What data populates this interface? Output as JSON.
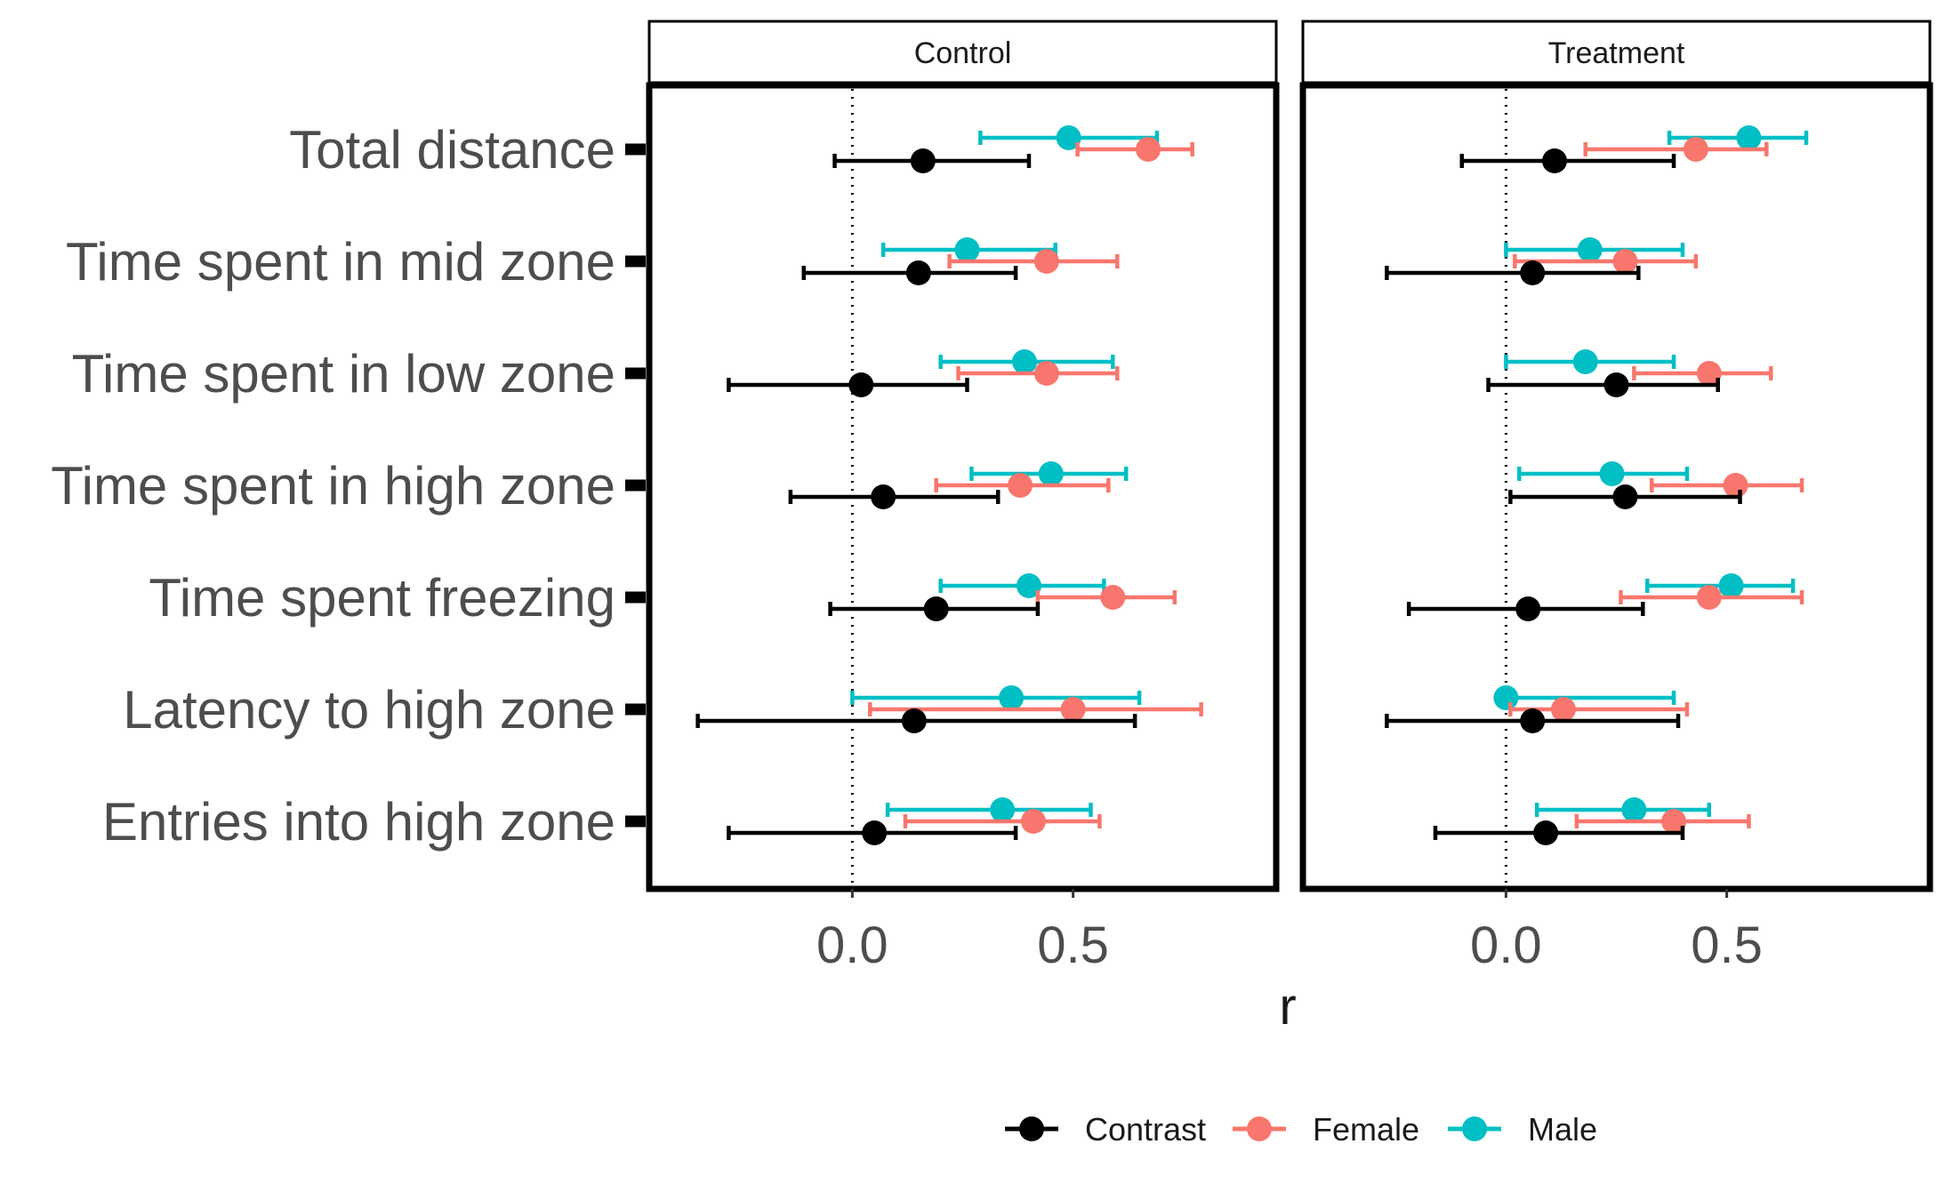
{
  "chart_data": {
    "type": "forest",
    "xlabel": "r",
    "xlim": [
      -0.46,
      0.96
    ],
    "xticks": [
      0.0,
      0.5
    ],
    "tick_labels": [
      "0.0",
      "0.5"
    ],
    "reference_line": 0,
    "legend_placement": "bottom",
    "categories": [
      "Total distance",
      "Time spent in mid zone",
      "Time spent in low zone",
      "Time spent in high zone",
      "Time spent freezing",
      "Latency to high zone",
      "Entries into high zone"
    ],
    "series": [
      {
        "name": "Contrast",
        "color": "#000000"
      },
      {
        "name": "Female",
        "color": "#F8766D"
      },
      {
        "name": "Male",
        "color": "#00BFC4"
      }
    ],
    "facets": [
      {
        "label": "Control",
        "data": {
          "Contrast": [
            {
              "est": 0.16,
              "lo": -0.04,
              "hi": 0.4
            },
            {
              "est": 0.15,
              "lo": -0.11,
              "hi": 0.37
            },
            {
              "est": 0.02,
              "lo": -0.28,
              "hi": 0.26
            },
            {
              "est": 0.07,
              "lo": -0.14,
              "hi": 0.33
            },
            {
              "est": 0.19,
              "lo": -0.05,
              "hi": 0.42
            },
            {
              "est": 0.14,
              "lo": -0.35,
              "hi": 0.64
            },
            {
              "est": 0.05,
              "lo": -0.28,
              "hi": 0.37
            }
          ],
          "Female": [
            {
              "est": 0.67,
              "lo": 0.51,
              "hi": 0.77
            },
            {
              "est": 0.44,
              "lo": 0.22,
              "hi": 0.6
            },
            {
              "est": 0.44,
              "lo": 0.24,
              "hi": 0.6
            },
            {
              "est": 0.38,
              "lo": 0.19,
              "hi": 0.58
            },
            {
              "est": 0.59,
              "lo": 0.42,
              "hi": 0.73
            },
            {
              "est": 0.5,
              "lo": 0.04,
              "hi": 0.79
            },
            {
              "est": 0.41,
              "lo": 0.12,
              "hi": 0.56
            }
          ],
          "Male": [
            {
              "est": 0.49,
              "lo": 0.29,
              "hi": 0.69
            },
            {
              "est": 0.26,
              "lo": 0.07,
              "hi": 0.46
            },
            {
              "est": 0.39,
              "lo": 0.2,
              "hi": 0.59
            },
            {
              "est": 0.45,
              "lo": 0.27,
              "hi": 0.62
            },
            {
              "est": 0.4,
              "lo": 0.2,
              "hi": 0.57
            },
            {
              "est": 0.36,
              "lo": 0.0,
              "hi": 0.65
            },
            {
              "est": 0.34,
              "lo": 0.08,
              "hi": 0.54
            }
          ]
        }
      },
      {
        "label": "Treatment",
        "data": {
          "Contrast": [
            {
              "est": 0.11,
              "lo": -0.1,
              "hi": 0.38
            },
            {
              "est": 0.06,
              "lo": -0.27,
              "hi": 0.3
            },
            {
              "est": 0.25,
              "lo": -0.04,
              "hi": 0.48
            },
            {
              "est": 0.27,
              "lo": 0.01,
              "hi": 0.53
            },
            {
              "est": 0.05,
              "lo": -0.22,
              "hi": 0.31
            },
            {
              "est": 0.06,
              "lo": -0.27,
              "hi": 0.39
            },
            {
              "est": 0.09,
              "lo": -0.16,
              "hi": 0.4
            }
          ],
          "Female": [
            {
              "est": 0.43,
              "lo": 0.18,
              "hi": 0.59
            },
            {
              "est": 0.27,
              "lo": 0.02,
              "hi": 0.43
            },
            {
              "est": 0.46,
              "lo": 0.29,
              "hi": 0.6
            },
            {
              "est": 0.52,
              "lo": 0.33,
              "hi": 0.67
            },
            {
              "est": 0.46,
              "lo": 0.26,
              "hi": 0.67
            },
            {
              "est": 0.13,
              "lo": 0.01,
              "hi": 0.41
            },
            {
              "est": 0.38,
              "lo": 0.16,
              "hi": 0.55
            }
          ],
          "Male": [
            {
              "est": 0.55,
              "lo": 0.37,
              "hi": 0.68
            },
            {
              "est": 0.19,
              "lo": 0.0,
              "hi": 0.4
            },
            {
              "est": 0.18,
              "lo": 0.0,
              "hi": 0.38
            },
            {
              "est": 0.24,
              "lo": 0.03,
              "hi": 0.41
            },
            {
              "est": 0.51,
              "lo": 0.32,
              "hi": 0.65
            },
            {
              "est": 0.0,
              "lo": 0.0,
              "hi": 0.38
            },
            {
              "est": 0.29,
              "lo": 0.07,
              "hi": 0.46
            }
          ]
        }
      }
    ]
  }
}
